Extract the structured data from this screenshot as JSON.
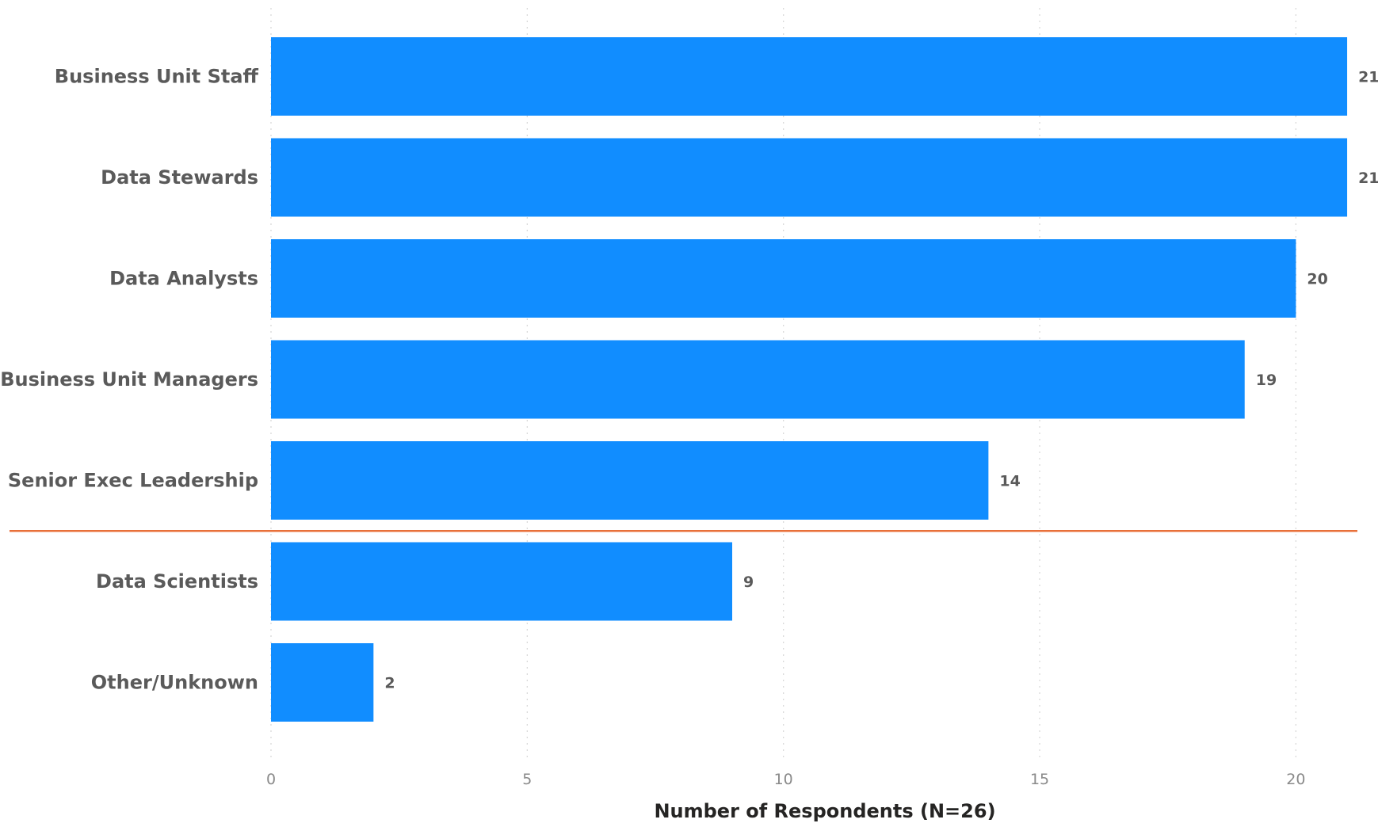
{
  "chart_data": {
    "type": "bar",
    "orientation": "horizontal",
    "categories": [
      "Business Unit Staff",
      "Data Stewards",
      "Data Analysts",
      "Business Unit Managers",
      "Senior Exec Leadership",
      "Data Scientists",
      "Other/Unknown"
    ],
    "values": [
      21,
      21,
      20,
      19,
      14,
      9,
      2
    ],
    "xlabel": "Number of Respondents (N=26)",
    "ylabel": "",
    "title": "",
    "xlim": [
      0,
      21
    ],
    "xticks": [
      0,
      5,
      10,
      15,
      20
    ],
    "grid": "vertical dotted",
    "legend": "none",
    "bar_color": "#118DFF",
    "reference_line": {
      "orientation": "horizontal",
      "between": [
        "Senior Exec Leadership",
        "Data Scientists"
      ],
      "color": "#E8703A"
    }
  }
}
